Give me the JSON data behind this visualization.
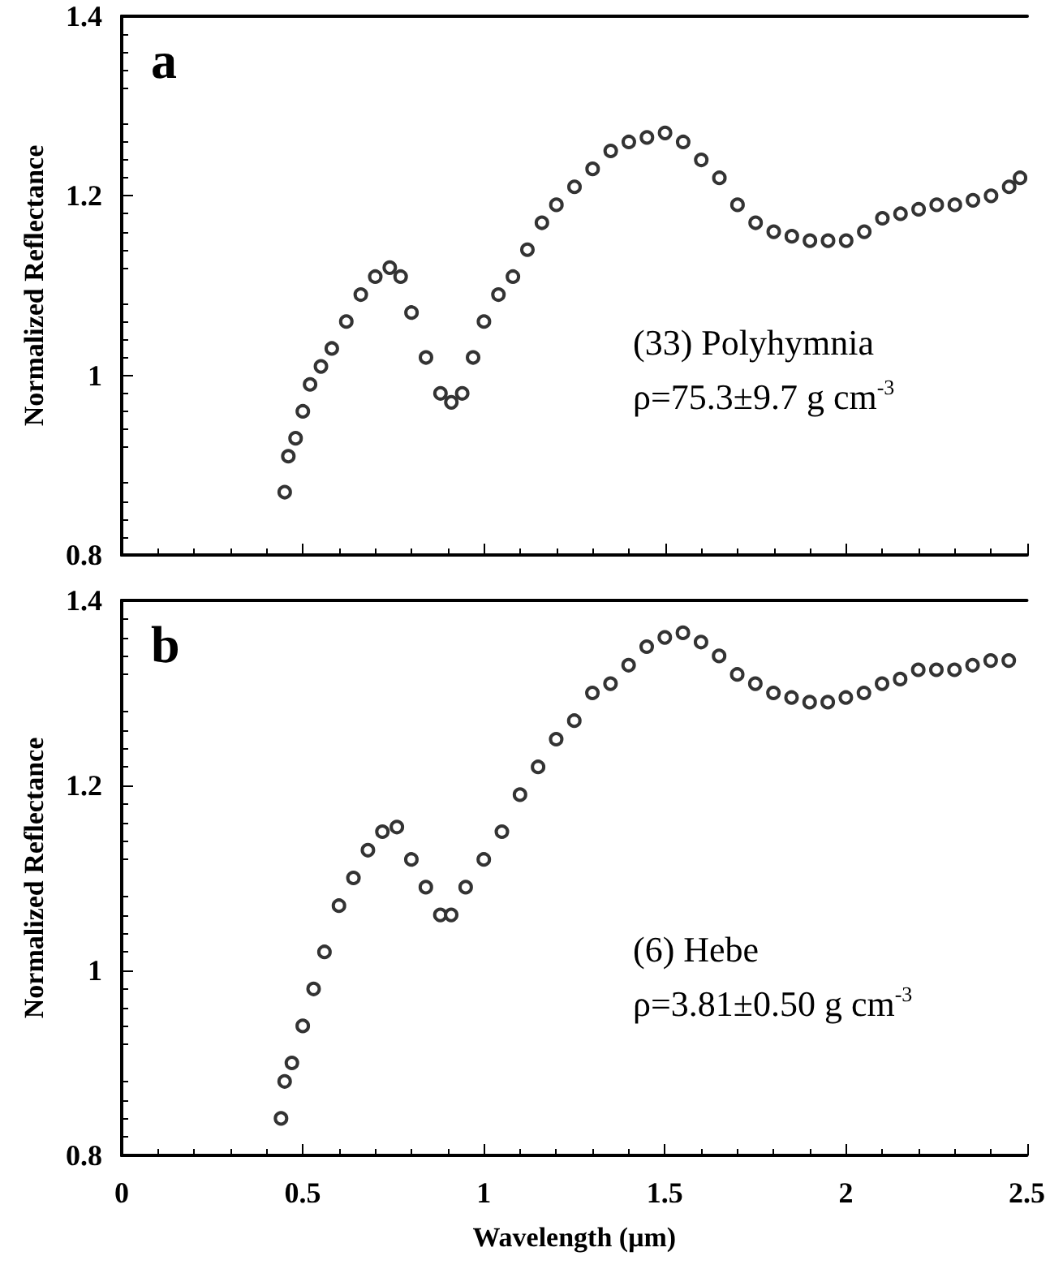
{
  "chart_data": [
    {
      "type": "scatter",
      "title": "a",
      "ylabel": "Normalized Reflectance",
      "annotations": [
        "(33) Polyhymnia",
        "ρ=75.3±9.7 g cm$^{-3}$"
      ],
      "marker": "circle",
      "tick_labels": "y",
      "grid": false,
      "xlim": [
        0,
        2.5
      ],
      "xticks": [
        0,
        0.5,
        1,
        1.5,
        2,
        2.5
      ],
      "ylim": [
        0.8,
        1.4
      ],
      "yticks": [
        0.8,
        1,
        1.2,
        1.4
      ],
      "series": [
        {
          "color": "#333333",
          "x": [
            0.45,
            0.46,
            0.48,
            0.5,
            0.52,
            0.55,
            0.58,
            0.62,
            0.66,
            0.7,
            0.74,
            0.77,
            0.8,
            0.84,
            0.88,
            0.91,
            0.94,
            0.97,
            1.0,
            1.04,
            1.08,
            1.12,
            1.16,
            1.2,
            1.25,
            1.3,
            1.35,
            1.4,
            1.45,
            1.5,
            1.55,
            1.6,
            1.65,
            1.7,
            1.75,
            1.8,
            1.85,
            1.9,
            1.95,
            2.0,
            2.05,
            2.1,
            2.15,
            2.2,
            2.25,
            2.3,
            2.35,
            2.4,
            2.45,
            2.48
          ],
          "values": [
            0.87,
            0.91,
            0.93,
            0.96,
            0.99,
            1.01,
            1.03,
            1.06,
            1.09,
            1.11,
            1.12,
            1.11,
            1.07,
            1.02,
            0.98,
            0.97,
            0.98,
            1.02,
            1.06,
            1.09,
            1.11,
            1.14,
            1.17,
            1.19,
            1.21,
            1.23,
            1.25,
            1.26,
            1.265,
            1.27,
            1.26,
            1.24,
            1.22,
            1.19,
            1.17,
            1.16,
            1.155,
            1.15,
            1.15,
            1.15,
            1.16,
            1.175,
            1.18,
            1.185,
            1.19,
            1.19,
            1.195,
            1.2,
            1.21,
            1.22
          ]
        }
      ]
    },
    {
      "type": "scatter",
      "title": "b",
      "xlabel": "Wavelength (μm)",
      "ylabel": "Normalized Reflectance",
      "annotations": [
        "(6) Hebe",
        "ρ=3.81±0.50 g cm$^{-3}$"
      ],
      "marker": "circle",
      "grid": false,
      "xlim": [
        0,
        2.5
      ],
      "xticks": [
        0,
        0.5,
        1,
        1.5,
        2,
        2.5
      ],
      "ylim": [
        0.8,
        1.4
      ],
      "yticks": [
        0.8,
        1,
        1.2,
        1.4
      ],
      "series": [
        {
          "color": "#333333",
          "x": [
            0.44,
            0.45,
            0.47,
            0.5,
            0.53,
            0.56,
            0.6,
            0.64,
            0.68,
            0.72,
            0.76,
            0.8,
            0.84,
            0.88,
            0.91,
            0.95,
            1.0,
            1.05,
            1.1,
            1.15,
            1.2,
            1.25,
            1.3,
            1.35,
            1.4,
            1.45,
            1.5,
            1.55,
            1.6,
            1.65,
            1.7,
            1.75,
            1.8,
            1.85,
            1.9,
            1.95,
            2.0,
            2.05,
            2.1,
            2.15,
            2.2,
            2.25,
            2.3,
            2.35,
            2.4,
            2.45
          ],
          "values": [
            0.84,
            0.88,
            0.9,
            0.94,
            0.98,
            1.02,
            1.07,
            1.1,
            1.13,
            1.15,
            1.155,
            1.12,
            1.09,
            1.06,
            1.06,
            1.09,
            1.12,
            1.15,
            1.19,
            1.22,
            1.25,
            1.27,
            1.3,
            1.31,
            1.33,
            1.35,
            1.36,
            1.365,
            1.355,
            1.34,
            1.32,
            1.31,
            1.3,
            1.295,
            1.29,
            1.29,
            1.295,
            1.3,
            1.31,
            1.315,
            1.325,
            1.325,
            1.325,
            1.33,
            1.335,
            1.335
          ]
        }
      ]
    }
  ]
}
